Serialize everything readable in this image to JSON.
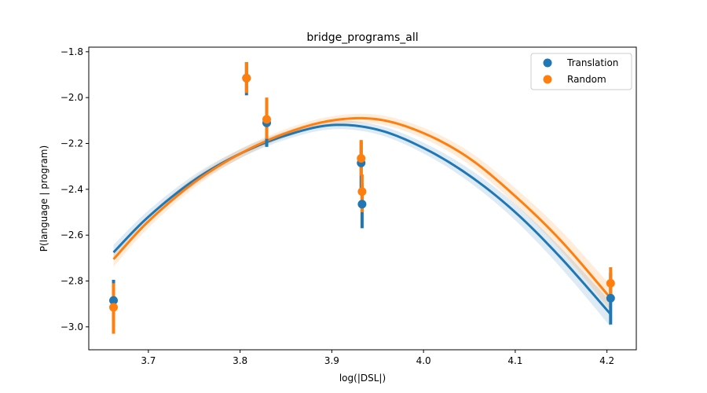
{
  "chart_data": {
    "type": "scatter",
    "title": "bridge_programs_all",
    "xlabel": "log(|DSL|)",
    "ylabel": "P(language | program)",
    "xlim": [
      3.635,
      4.232
    ],
    "ylim": [
      -3.1,
      -1.78
    ],
    "xticks": [
      3.7,
      3.8,
      3.9,
      4.0,
      4.1,
      4.2
    ],
    "yticks": [
      -3.0,
      -2.8,
      -2.6,
      -2.4,
      -2.2,
      -2.0,
      -1.8
    ],
    "xtick_labels": [
      "3.7",
      "3.8",
      "3.9",
      "4.0",
      "4.1",
      "4.2"
    ],
    "ytick_labels": [
      "−3.0",
      "−2.8",
      "−2.6",
      "−2.4",
      "−2.2",
      "−2.0",
      "−1.8"
    ],
    "grid": false,
    "legend_position": "top-right",
    "series": [
      {
        "name": "Translation",
        "color": "#1f77b4",
        "points": [
          {
            "x": 3.662,
            "y": -2.885,
            "err_low": -2.975,
            "err_high": -2.795
          },
          {
            "x": 3.807,
            "y": -1.915,
            "err_low": -1.99,
            "err_high": -1.845
          },
          {
            "x": 3.829,
            "y": -2.11,
            "err_low": -2.215,
            "err_high": -2.01
          },
          {
            "x": 3.932,
            "y": -2.285,
            "err_low": -2.4,
            "err_high": -2.19
          },
          {
            "x": 3.933,
            "y": -2.465,
            "err_low": -2.57,
            "err_high": -2.375
          },
          {
            "x": 4.204,
            "y": -2.875,
            "err_low": -2.99,
            "err_high": -2.765
          }
        ],
        "fit_curve": [
          {
            "x": 3.662,
            "y": -2.675
          },
          {
            "x": 3.7,
            "y": -2.52
          },
          {
            "x": 3.75,
            "y": -2.36
          },
          {
            "x": 3.8,
            "y": -2.245
          },
          {
            "x": 3.85,
            "y": -2.165
          },
          {
            "x": 3.9,
            "y": -2.12
          },
          {
            "x": 3.95,
            "y": -2.14
          },
          {
            "x": 4.0,
            "y": -2.22
          },
          {
            "x": 4.05,
            "y": -2.34
          },
          {
            "x": 4.1,
            "y": -2.5
          },
          {
            "x": 4.15,
            "y": -2.7
          },
          {
            "x": 4.204,
            "y": -2.945
          }
        ]
      },
      {
        "name": "Random",
        "color": "#ff7f0e",
        "points": [
          {
            "x": 3.662,
            "y": -2.915,
            "err_low": -3.03,
            "err_high": -2.81
          },
          {
            "x": 3.807,
            "y": -1.915,
            "err_low": -1.98,
            "err_high": -1.845
          },
          {
            "x": 3.829,
            "y": -2.095,
            "err_low": -2.18,
            "err_high": -2.0
          },
          {
            "x": 3.932,
            "y": -2.265,
            "err_low": -2.34,
            "err_high": -2.185
          },
          {
            "x": 3.933,
            "y": -2.41,
            "err_low": -2.5,
            "err_high": -2.335
          },
          {
            "x": 4.204,
            "y": -2.81,
            "err_low": -2.88,
            "err_high": -2.74
          }
        ],
        "fit_curve": [
          {
            "x": 3.662,
            "y": -2.705
          },
          {
            "x": 3.7,
            "y": -2.54
          },
          {
            "x": 3.75,
            "y": -2.37
          },
          {
            "x": 3.8,
            "y": -2.245
          },
          {
            "x": 3.85,
            "y": -2.155
          },
          {
            "x": 3.9,
            "y": -2.1
          },
          {
            "x": 3.95,
            "y": -2.095
          },
          {
            "x": 4.0,
            "y": -2.155
          },
          {
            "x": 4.05,
            "y": -2.265
          },
          {
            "x": 4.1,
            "y": -2.43
          },
          {
            "x": 4.15,
            "y": -2.625
          },
          {
            "x": 4.204,
            "y": -2.875
          }
        ]
      }
    ]
  }
}
